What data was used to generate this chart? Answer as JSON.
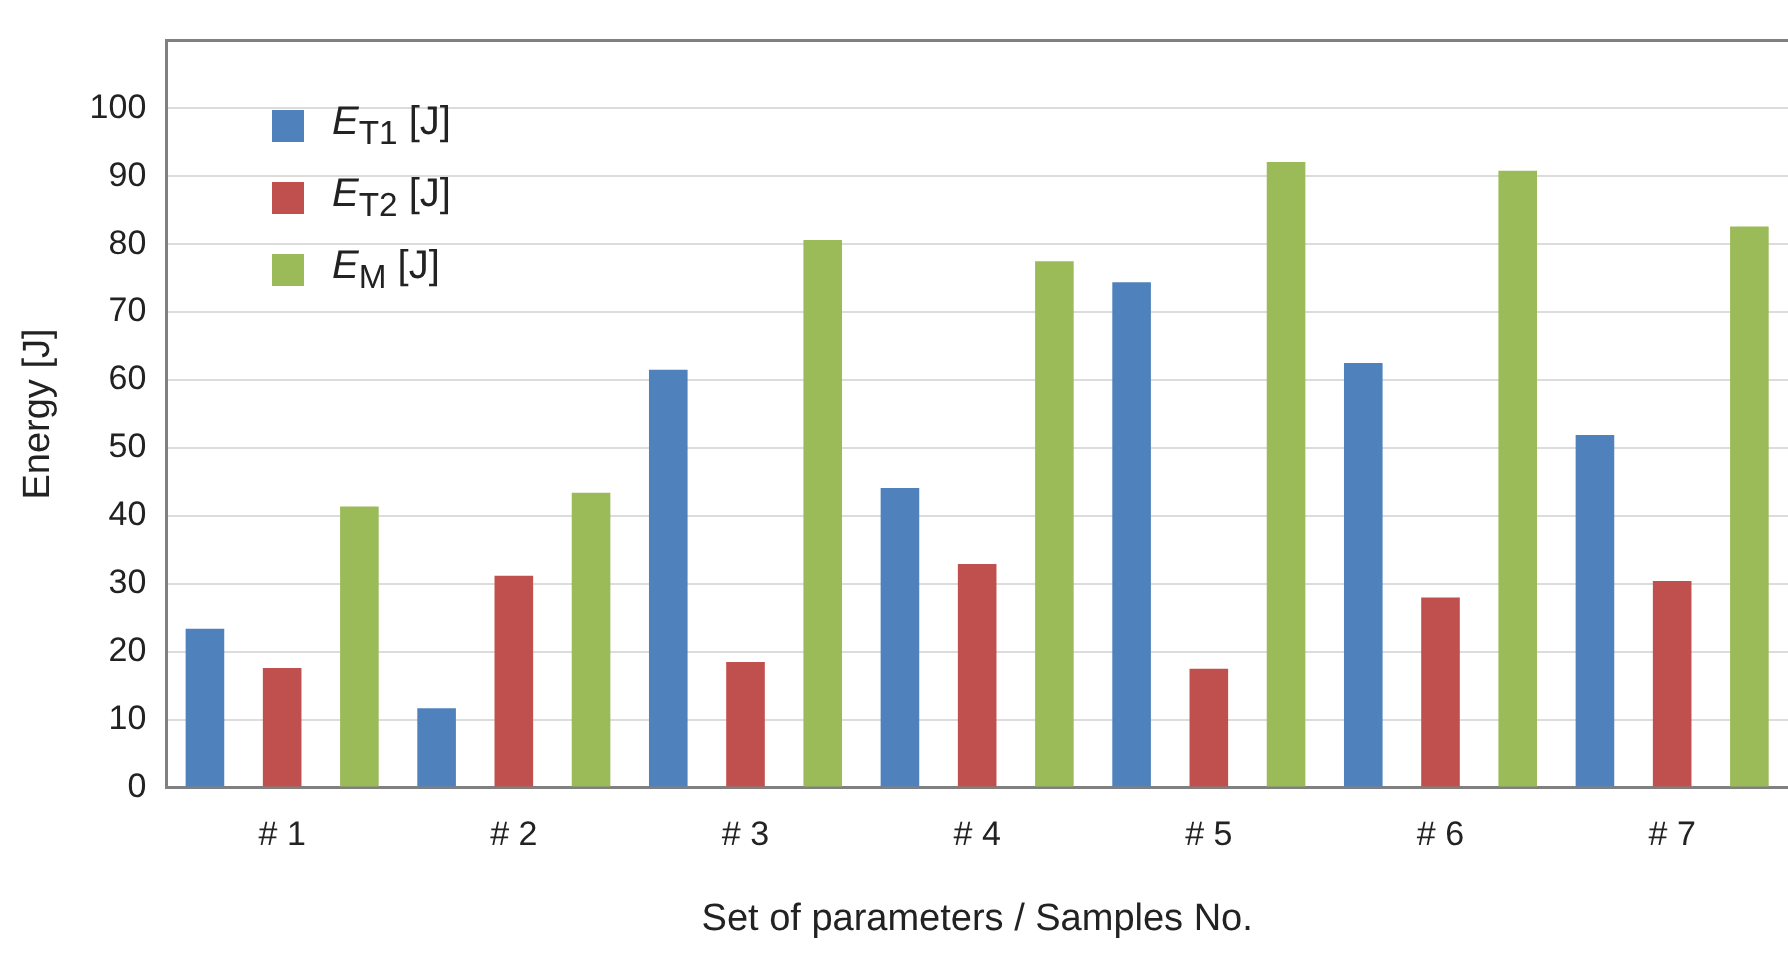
{
  "chart_data": {
    "type": "bar",
    "xlabel": "Set of parameters / Samples No.",
    "ylabel": "Energy [J]",
    "categories": [
      "# 1",
      "# 2",
      "# 3",
      "# 4",
      "# 5",
      "# 6",
      "# 7"
    ],
    "series": [
      {
        "name": "E$_{T1}$ [J]",
        "color": "#4f81bd",
        "values": [
          23.4,
          11.7,
          61.5,
          44.1,
          74.4,
          62.5,
          51.9
        ]
      },
      {
        "name": "E$_{T2}$ [J]",
        "color": "#c0504d",
        "values": [
          17.6,
          31.2,
          18.5,
          32.9,
          17.5,
          28.0,
          30.4
        ]
      },
      {
        "name": "E$_{M}$ [J]",
        "color": "#9bbb59",
        "values": [
          41.4,
          43.4,
          80.6,
          77.5,
          92.1,
          90.8,
          82.6
        ]
      }
    ],
    "ylim": [
      0,
      110
    ],
    "yticks": [
      0,
      10,
      20,
      30,
      40,
      50,
      60,
      70,
      80,
      90,
      100
    ],
    "grid": "y",
    "legend": "top left"
  }
}
